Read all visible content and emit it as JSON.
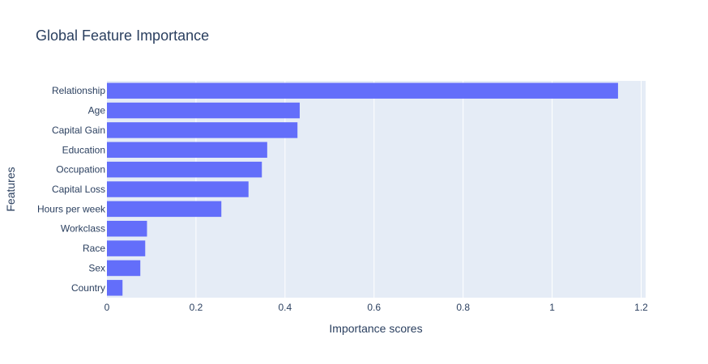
{
  "chart_data": {
    "type": "bar",
    "orientation": "horizontal",
    "title": "Global Feature Importance",
    "xlabel": "Importance scores",
    "ylabel": "Features",
    "xlim": [
      0,
      1.21
    ],
    "xticks": [
      0,
      0.2,
      0.4,
      0.6,
      0.8,
      1,
      1.2
    ],
    "xtick_labels": [
      "0",
      "0.2",
      "0.4",
      "0.6",
      "0.8",
      "1",
      "1.2"
    ],
    "grid": true,
    "categories": [
      "Relationship",
      "Age",
      "Capital Gain",
      "Education",
      "Occupation",
      "Capital Loss",
      "Hours per week",
      "Workclass",
      "Race",
      "Sex",
      "Country"
    ],
    "values": [
      1.148,
      0.433,
      0.428,
      0.36,
      0.348,
      0.318,
      0.257,
      0.09,
      0.086,
      0.075,
      0.035
    ],
    "colors": {
      "bar": "#636efa",
      "plot_bg": "#e5ecf6",
      "grid": "#ffffff",
      "text": "#2a3f5f"
    }
  }
}
